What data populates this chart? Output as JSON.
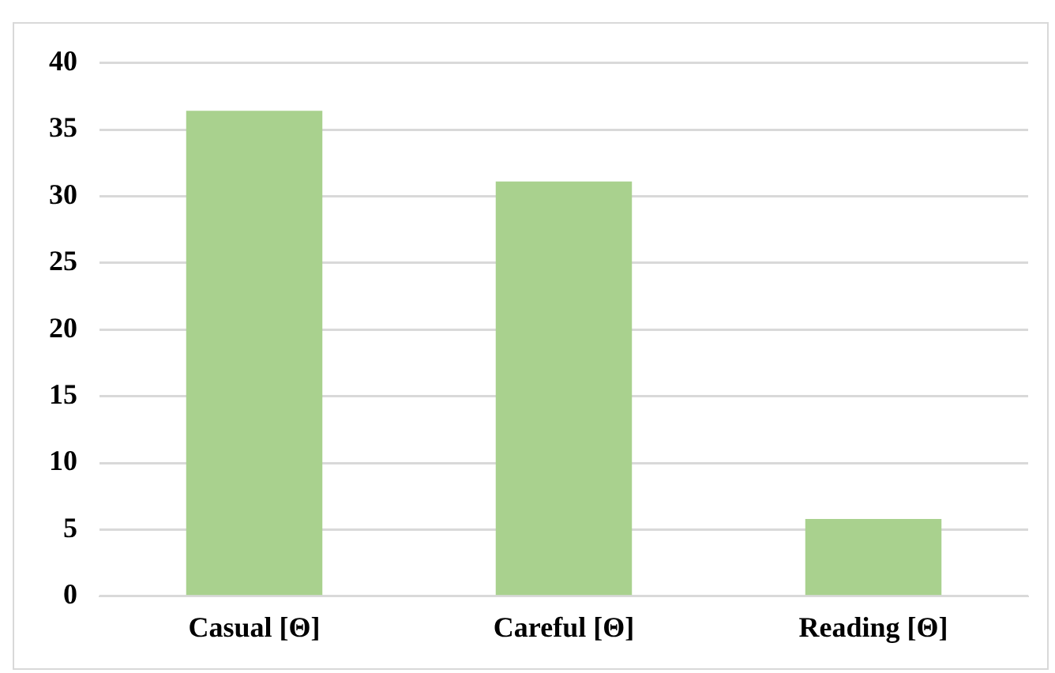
{
  "chart_data": {
    "type": "bar",
    "categories": [
      "Casual [Θ]",
      "Careful [Θ]",
      "Reading [Θ]"
    ],
    "values": [
      36.4,
      31.1,
      5.8
    ],
    "color": "#a9d18e",
    "ylim": [
      0,
      40
    ],
    "yticks": [
      0,
      5,
      10,
      15,
      20,
      25,
      30,
      35,
      40
    ],
    "grid": "y"
  }
}
